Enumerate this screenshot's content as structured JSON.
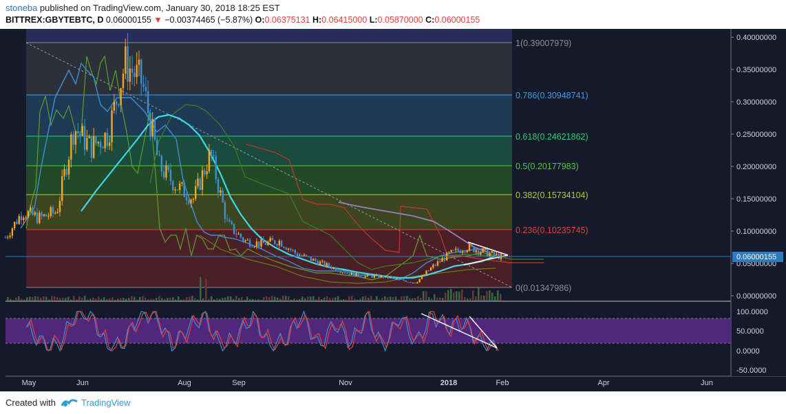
{
  "header": {
    "author": "stoneba",
    "published_text": "published on TradingView.com, January 30, 2018 18:25 EST",
    "symbol": "BITTREX:GBYTEBTC, D",
    "last": "0.06000155",
    "change_arrow": "▼",
    "change": "−0.00374465 (−5.87%)",
    "o_label": "O:",
    "o_value": "0.06375131",
    "h_label": "H:",
    "h_value": "0.06415000",
    "l_label": "L:",
    "l_value": "0.05870000",
    "c_label": "C:",
    "c_value": "0.06000155"
  },
  "price_axis": {
    "labels": [
      "0.40000000",
      "0.35000000",
      "0.30000000",
      "0.25000000",
      "0.20000000",
      "0.15000000",
      "0.10000000",
      "0.05000000",
      "0.00000000"
    ],
    "current_price_label": "0.06000155"
  },
  "oscillator_axis": {
    "labels": [
      "100.0000",
      "50.0000",
      "0.0000",
      "-50.0000"
    ]
  },
  "time_axis": {
    "labels": [
      "May",
      "Jun",
      "Aug",
      "Sep",
      "Nov",
      "2018",
      "Feb",
      "Apr",
      "Jun"
    ]
  },
  "fib_levels": [
    {
      "label": "1(0.39007979)",
      "color": "#8a8f99"
    },
    {
      "label": "0.786(0.30948741)",
      "color": "#3d9be9"
    },
    {
      "label": "0.618(0.24621862)",
      "color": "#2ecc71"
    },
    {
      "label": "0.5(0.20177983)",
      "color": "#55c83a"
    },
    {
      "label": "0.382(0.15734104)",
      "color": "#b5c830"
    },
    {
      "label": "0.236(0.10235745)",
      "color": "#e0413b"
    },
    {
      "label": "0(0.01347986)",
      "color": "#8a8f99"
    }
  ],
  "footer": {
    "created_with": "Created with",
    "brand": "TradingView"
  },
  "colors": {
    "background": "#151a2a",
    "candle_up": "#f5a623",
    "candle_down": "#3d8fd6",
    "ma_cyan": "#3fd8e8",
    "stoch_band": "#7b3fb0",
    "stoch_k": "#3d8fd6",
    "stoch_d": "#e0413b",
    "current_price": "#2b7bc0"
  },
  "chart_data": [
    {
      "type": "line",
      "title": "BITTREX:GBYTEBTC, D",
      "xlabel": "",
      "ylabel": "",
      "x": [
        "2017-04-20",
        "2017-05-01",
        "2017-05-15",
        "2017-05-29",
        "2017-06-05",
        "2017-06-15",
        "2017-06-22",
        "2017-06-29",
        "2017-07-06",
        "2017-07-13",
        "2017-07-20",
        "2017-07-27",
        "2017-08-03",
        "2017-08-10",
        "2017-08-17",
        "2017-08-24",
        "2017-09-01",
        "2017-09-14",
        "2017-09-28",
        "2017-10-12",
        "2017-10-26",
        "2017-11-09",
        "2017-11-23",
        "2017-12-07",
        "2017-12-21",
        "2018-01-04",
        "2018-01-11",
        "2018-01-18",
        "2018-01-25",
        "2018-01-30"
      ],
      "series": [
        {
          "name": "GBYTEBTC",
          "values": [
            0.09,
            0.13,
            0.12,
            0.13,
            0.26,
            0.23,
            0.25,
            0.36,
            0.33,
            0.2,
            0.17,
            0.15,
            0.22,
            0.11,
            0.085,
            0.08,
            0.085,
            0.065,
            0.055,
            0.045,
            0.035,
            0.03,
            0.03,
            0.025,
            0.02,
            0.045,
            0.065,
            0.075,
            0.068,
            0.06
          ]
        }
      ],
      "ylim": [
        0,
        0.41
      ],
      "grid": true,
      "fib_retracement": [
        0.39007979,
        0.30948741,
        0.24621862,
        0.20177983,
        0.15734104,
        0.10235745,
        0.01347986
      ]
    },
    {
      "type": "line",
      "title": "",
      "series": [
        {
          "name": "",
          "values": [
            60,
            20,
            10,
            95,
            95,
            5,
            20,
            95,
            90,
            10,
            60,
            90,
            5,
            40,
            90,
            10,
            30,
            95,
            10,
            70,
            20,
            90,
            5,
            90,
            20,
            90,
            60,
            70,
            20,
            5
          ]
        }
      ],
      "ylim": [
        -60,
        110
      ]
    }
  ]
}
